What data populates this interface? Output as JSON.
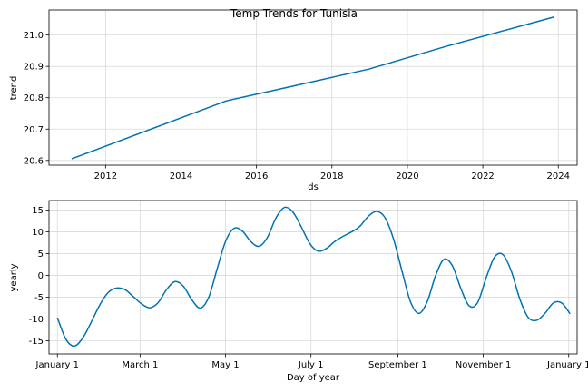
{
  "title": "Temp Trends for Tunisia",
  "chart_data": [
    {
      "type": "line",
      "xlabel": "ds",
      "ylabel": "trend",
      "x_type": "year",
      "xlim": [
        2010.5,
        2024.5
      ],
      "ylim": [
        20.585,
        21.08
      ],
      "x_ticks": [
        2012,
        2014,
        2016,
        2018,
        2020,
        2022,
        2024
      ],
      "y_ticks": [
        20.6,
        20.7,
        20.8,
        20.9,
        21.0
      ],
      "y_tick_decimals": 1,
      "grid": true,
      "series": [
        {
          "color": "#0072B2",
          "points": [
            [
              2011.1,
              20.605
            ],
            [
              2015.2,
              20.79
            ],
            [
              2017.0,
              20.838
            ],
            [
              2019.0,
              20.892
            ],
            [
              2021.0,
              20.963
            ],
            [
              2023.9,
              21.058
            ]
          ]
        }
      ]
    },
    {
      "type": "line",
      "xlabel": "Day of year",
      "ylabel": "yearly",
      "x_type": "day",
      "xlim": [
        -6,
        371
      ],
      "ylim": [
        -18,
        17.2
      ],
      "x_ticks": [
        0,
        59,
        120,
        181,
        243,
        304,
        365
      ],
      "x_tick_labels": [
        "January 1",
        "March 1",
        "May 1",
        "July 1",
        "September 1",
        "November 1",
        "January 1"
      ],
      "y_ticks": [
        -15,
        -10,
        -5,
        0,
        5,
        10,
        15
      ],
      "y_tick_decimals": 0,
      "grid": true,
      "series": [
        {
          "color": "#0072B2",
          "points": [
            [
              0,
              -9.7
            ],
            [
              6,
              -14.6
            ],
            [
              12,
              -16.2
            ],
            [
              18,
              -14.4
            ],
            [
              24,
              -10.8
            ],
            [
              30,
              -6.9
            ],
            [
              36,
              -4.0
            ],
            [
              42,
              -2.9
            ],
            [
              48,
              -3.2
            ],
            [
              54,
              -4.8
            ],
            [
              60,
              -6.5
            ],
            [
              66,
              -7.4
            ],
            [
              72,
              -6.2
            ],
            [
              78,
              -3.2
            ],
            [
              84,
              -1.4
            ],
            [
              90,
              -2.5
            ],
            [
              96,
              -5.6
            ],
            [
              102,
              -7.5
            ],
            [
              108,
              -5.0
            ],
            [
              114,
              1.5
            ],
            [
              120,
              7.8
            ],
            [
              126,
              10.8
            ],
            [
              132,
              10.2
            ],
            [
              138,
              7.8
            ],
            [
              144,
              6.7
            ],
            [
              150,
              8.8
            ],
            [
              156,
              13.2
            ],
            [
              162,
              15.6
            ],
            [
              168,
              14.6
            ],
            [
              174,
              11.2
            ],
            [
              180,
              7.4
            ],
            [
              186,
              5.6
            ],
            [
              192,
              6.2
            ],
            [
              198,
              7.8
            ],
            [
              204,
              9.0
            ],
            [
              210,
              10.0
            ],
            [
              216,
              11.3
            ],
            [
              222,
              13.6
            ],
            [
              228,
              14.7
            ],
            [
              234,
              13.2
            ],
            [
              240,
              8.3
            ],
            [
              246,
              1.0
            ],
            [
              252,
              -6.0
            ],
            [
              258,
              -8.7
            ],
            [
              264,
              -6.0
            ],
            [
              270,
              0.0
            ],
            [
              276,
              3.7
            ],
            [
              282,
              2.2
            ],
            [
              288,
              -3.0
            ],
            [
              294,
              -7.0
            ],
            [
              300,
              -6.2
            ],
            [
              306,
              -0.6
            ],
            [
              312,
              4.2
            ],
            [
              318,
              4.8
            ],
            [
              324,
              1.0
            ],
            [
              330,
              -5.3
            ],
            [
              336,
              -9.6
            ],
            [
              342,
              -10.3
            ],
            [
              348,
              -8.7
            ],
            [
              354,
              -6.3
            ],
            [
              360,
              -6.3
            ],
            [
              366,
              -8.8
            ]
          ]
        }
      ]
    }
  ]
}
